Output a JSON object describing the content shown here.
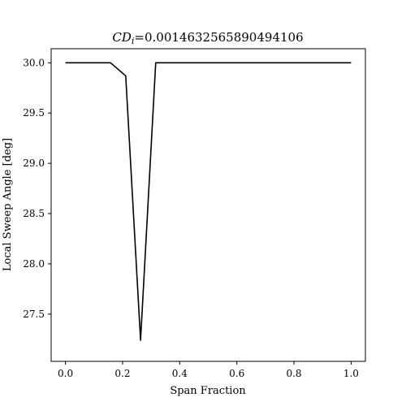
{
  "chart_data": {
    "type": "line",
    "title": {
      "symbol": "CD",
      "subscript": "i",
      "value_text": "=0.0014632565890494106"
    },
    "xlabel": "Span Fraction",
    "ylabel": "Local Sweep Angle [deg]",
    "xlim": [
      -0.05,
      1.05
    ],
    "ylim": [
      27.03,
      30.14
    ],
    "x_ticks": [
      0.0,
      0.2,
      0.4,
      0.6,
      0.8,
      1.0
    ],
    "x_tick_labels": [
      "0.0",
      "0.2",
      "0.4",
      "0.6",
      "0.8",
      "1.0"
    ],
    "y_ticks": [
      27.5,
      28.0,
      28.5,
      29.0,
      29.5,
      30.0
    ],
    "y_tick_labels": [
      "27.5",
      "28.0",
      "28.5",
      "29.0",
      "29.5",
      "30.0"
    ],
    "grid": false,
    "series": [
      {
        "color": "#000000",
        "x": [
          0.0,
          0.158,
          0.211,
          0.263,
          0.316,
          1.0
        ],
        "y": [
          30.0,
          30.0,
          29.87,
          27.24,
          30.0,
          30.0
        ]
      }
    ]
  }
}
